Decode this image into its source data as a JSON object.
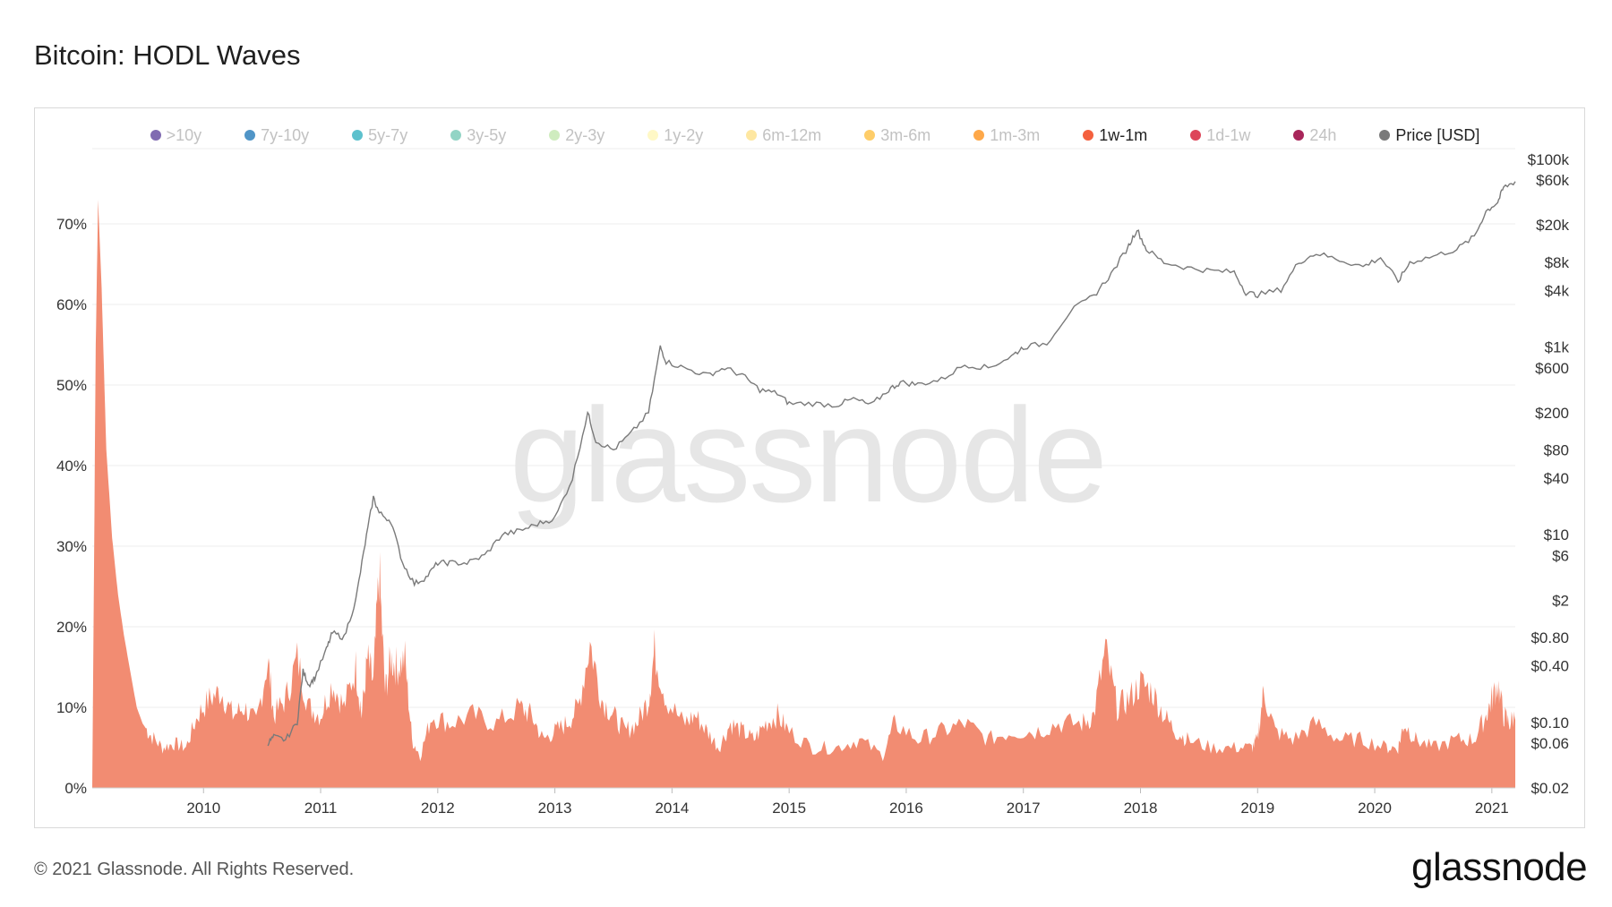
{
  "title": "Bitcoin: HODL Waves",
  "footer": {
    "copyright": "© 2021 Glassnode. All Rights Reserved.",
    "logo": "glassnode"
  },
  "watermark": "glassnode",
  "colors": {
    "area_fill": "#f28c72",
    "price_line": "#7a7a7a",
    "grid": "#eeeeee"
  },
  "chart_data": {
    "type": "area",
    "legend_position": "top",
    "legend": [
      {
        "label": ">10y",
        "color": "#6a51a3",
        "active": false
      },
      {
        "label": "7y-10y",
        "color": "#3182bd",
        "active": false
      },
      {
        "label": "5y-7y",
        "color": "#41b6c4",
        "active": false
      },
      {
        "label": "3y-5y",
        "color": "#7fcdbb",
        "active": false
      },
      {
        "label": "2y-3y",
        "color": "#c7e9b4",
        "active": false
      },
      {
        "label": "1y-2y",
        "color": "#fff7bc",
        "active": false
      },
      {
        "label": "6m-12m",
        "color": "#fee391",
        "active": false
      },
      {
        "label": "3m-6m",
        "color": "#fec44f",
        "active": false
      },
      {
        "label": "1m-3m",
        "color": "#fe9929",
        "active": false
      },
      {
        "label": "1w-1m",
        "color": "#f4603e",
        "active": true
      },
      {
        "label": "1d-1w",
        "color": "#d7263d",
        "active": false
      },
      {
        "label": "24h",
        "color": "#99003d",
        "active": false
      },
      {
        "label": "Price [USD]",
        "color": "#7a7a7a",
        "active": true
      }
    ],
    "x_ticks": [
      "2010",
      "2011",
      "2012",
      "2013",
      "2014",
      "2015",
      "2016",
      "2017",
      "2018",
      "2019",
      "2020",
      "2021"
    ],
    "x_range": [
      2009.05,
      2021.2
    ],
    "y_left": {
      "ticks": [
        "0%",
        "10%",
        "20%",
        "30%",
        "40%",
        "50%",
        "60%",
        "70%"
      ],
      "range": [
        0,
        78
      ]
    },
    "y_right": {
      "scale": "log",
      "ticks": [
        "$0.02",
        "$0.06",
        "$0.10",
        "$0.40",
        "$0.80",
        "$2",
        "$6",
        "$10",
        "$40",
        "$80",
        "$200",
        "$600",
        "$1k",
        "$4k",
        "$8k",
        "$20k",
        "$60k",
        "$100k"
      ],
      "tick_values": [
        0.02,
        0.06,
        0.1,
        0.4,
        0.8,
        2,
        6,
        10,
        40,
        80,
        200,
        600,
        1000,
        4000,
        8000,
        20000,
        60000,
        100000
      ],
      "range": [
        0.02,
        100000
      ]
    },
    "series": [
      {
        "name": "1w-1m",
        "unit": "%",
        "points": [
          [
            2009.05,
            0
          ],
          [
            2009.08,
            55
          ],
          [
            2009.1,
            73
          ],
          [
            2009.13,
            62
          ],
          [
            2009.17,
            42
          ],
          [
            2009.22,
            31
          ],
          [
            2009.27,
            24
          ],
          [
            2009.32,
            19
          ],
          [
            2009.38,
            14
          ],
          [
            2009.43,
            10
          ],
          [
            2009.48,
            8
          ],
          [
            2009.55,
            6.5
          ],
          [
            2009.65,
            5
          ],
          [
            2009.75,
            5.5
          ],
          [
            2009.85,
            5
          ],
          [
            2009.95,
            9
          ],
          [
            2010.05,
            11
          ],
          [
            2010.15,
            12
          ],
          [
            2010.25,
            9
          ],
          [
            2010.35,
            10
          ],
          [
            2010.45,
            8
          ],
          [
            2010.55,
            16
          ],
          [
            2010.6,
            9
          ],
          [
            2010.7,
            11
          ],
          [
            2010.8,
            16
          ],
          [
            2010.9,
            10
          ],
          [
            2011.0,
            9
          ],
          [
            2011.1,
            13
          ],
          [
            2011.2,
            10
          ],
          [
            2011.3,
            15
          ],
          [
            2011.35,
            9
          ],
          [
            2011.4,
            16
          ],
          [
            2011.45,
            13
          ],
          [
            2011.5,
            27
          ],
          [
            2011.55,
            12
          ],
          [
            2011.6,
            16
          ],
          [
            2011.65,
            15
          ],
          [
            2011.72,
            16
          ],
          [
            2011.78,
            6
          ],
          [
            2011.85,
            4
          ],
          [
            2011.95,
            9
          ],
          [
            2012.1,
            8
          ],
          [
            2012.3,
            9
          ],
          [
            2012.5,
            8
          ],
          [
            2012.7,
            10
          ],
          [
            2012.8,
            9
          ],
          [
            2012.9,
            6
          ],
          [
            2013.0,
            7
          ],
          [
            2013.1,
            8
          ],
          [
            2013.2,
            10
          ],
          [
            2013.3,
            18
          ],
          [
            2013.4,
            11
          ],
          [
            2013.5,
            9
          ],
          [
            2013.6,
            7
          ],
          [
            2013.7,
            8
          ],
          [
            2013.8,
            11
          ],
          [
            2013.85,
            17
          ],
          [
            2013.95,
            11
          ],
          [
            2014.1,
            8
          ],
          [
            2014.2,
            9
          ],
          [
            2014.3,
            7
          ],
          [
            2014.4,
            5
          ],
          [
            2014.5,
            8
          ],
          [
            2014.6,
            7
          ],
          [
            2014.7,
            6
          ],
          [
            2014.8,
            8
          ],
          [
            2014.9,
            9
          ],
          [
            2015.0,
            7
          ],
          [
            2015.2,
            5
          ],
          [
            2015.4,
            5
          ],
          [
            2015.6,
            6
          ],
          [
            2015.8,
            4
          ],
          [
            2015.9,
            8
          ],
          [
            2016.1,
            6
          ],
          [
            2016.3,
            7
          ],
          [
            2016.5,
            8
          ],
          [
            2016.7,
            6
          ],
          [
            2016.9,
            7
          ],
          [
            2017.1,
            7
          ],
          [
            2017.3,
            8
          ],
          [
            2017.5,
            8
          ],
          [
            2017.6,
            9
          ],
          [
            2017.7,
            17
          ],
          [
            2017.8,
            10
          ],
          [
            2017.9,
            11
          ],
          [
            2018.0,
            13
          ],
          [
            2018.1,
            12
          ],
          [
            2018.2,
            9
          ],
          [
            2018.3,
            7
          ],
          [
            2018.4,
            6
          ],
          [
            2018.6,
            5
          ],
          [
            2018.8,
            5
          ],
          [
            2018.95,
            5
          ],
          [
            2019.0,
            6
          ],
          [
            2019.05,
            12
          ],
          [
            2019.15,
            7
          ],
          [
            2019.3,
            6
          ],
          [
            2019.5,
            8
          ],
          [
            2019.7,
            6
          ],
          [
            2019.9,
            6
          ],
          [
            2020.1,
            5
          ],
          [
            2020.2,
            5
          ],
          [
            2020.25,
            8
          ],
          [
            2020.35,
            6
          ],
          [
            2020.5,
            5
          ],
          [
            2020.7,
            6
          ],
          [
            2020.85,
            6
          ],
          [
            2020.95,
            9
          ],
          [
            2021.0,
            11
          ],
          [
            2021.05,
            13
          ],
          [
            2021.1,
            9
          ],
          [
            2021.15,
            8
          ],
          [
            2021.2,
            9
          ]
        ]
      },
      {
        "name": "Price [USD]",
        "unit": "USD",
        "points": [
          [
            2010.55,
            0.06
          ],
          [
            2010.6,
            0.07
          ],
          [
            2010.7,
            0.065
          ],
          [
            2010.8,
            0.1
          ],
          [
            2010.85,
            0.35
          ],
          [
            2010.9,
            0.25
          ],
          [
            2010.95,
            0.3
          ],
          [
            2011.05,
            0.6
          ],
          [
            2011.1,
            0.9
          ],
          [
            2011.2,
            0.8
          ],
          [
            2011.3,
            2
          ],
          [
            2011.38,
            8
          ],
          [
            2011.45,
            25
          ],
          [
            2011.5,
            17
          ],
          [
            2011.6,
            14
          ],
          [
            2011.7,
            5
          ],
          [
            2011.8,
            3
          ],
          [
            2011.9,
            3.5
          ],
          [
            2012.0,
            5
          ],
          [
            2012.1,
            5
          ],
          [
            2012.25,
            5
          ],
          [
            2012.4,
            6
          ],
          [
            2012.55,
            10
          ],
          [
            2012.7,
            11
          ],
          [
            2012.85,
            13
          ],
          [
            2013.0,
            15
          ],
          [
            2013.15,
            40
          ],
          [
            2013.28,
            200
          ],
          [
            2013.35,
            100
          ],
          [
            2013.5,
            80
          ],
          [
            2013.65,
            120
          ],
          [
            2013.8,
            200
          ],
          [
            2013.9,
            1000
          ],
          [
            2013.95,
            700
          ],
          [
            2014.1,
            600
          ],
          [
            2014.3,
            500
          ],
          [
            2014.45,
            600
          ],
          [
            2014.6,
            500
          ],
          [
            2014.75,
            350
          ],
          [
            2014.9,
            320
          ],
          [
            2015.0,
            250
          ],
          [
            2015.2,
            250
          ],
          [
            2015.4,
            240
          ],
          [
            2015.55,
            280
          ],
          [
            2015.7,
            240
          ],
          [
            2015.85,
            350
          ],
          [
            2015.95,
            420
          ],
          [
            2016.1,
            400
          ],
          [
            2016.3,
            450
          ],
          [
            2016.5,
            650
          ],
          [
            2016.7,
            600
          ],
          [
            2016.9,
            800
          ],
          [
            2017.0,
            1000
          ],
          [
            2017.2,
            1100
          ],
          [
            2017.4,
            2400
          ],
          [
            2017.6,
            3500
          ],
          [
            2017.75,
            6000
          ],
          [
            2017.9,
            12000
          ],
          [
            2017.97,
            18000
          ],
          [
            2018.05,
            11000
          ],
          [
            2018.2,
            8000
          ],
          [
            2018.4,
            7000
          ],
          [
            2018.6,
            6500
          ],
          [
            2018.8,
            6300
          ],
          [
            2018.9,
            3800
          ],
          [
            2019.0,
            3600
          ],
          [
            2019.2,
            4100
          ],
          [
            2019.35,
            8000
          ],
          [
            2019.5,
            10000
          ],
          [
            2019.7,
            8500
          ],
          [
            2019.9,
            7200
          ],
          [
            2020.05,
            9000
          ],
          [
            2020.2,
            5000
          ],
          [
            2020.3,
            8000
          ],
          [
            2020.5,
            9300
          ],
          [
            2020.7,
            11000
          ],
          [
            2020.85,
            15000
          ],
          [
            2020.95,
            28000
          ],
          [
            2021.05,
            35000
          ],
          [
            2021.1,
            50000
          ],
          [
            2021.2,
            58000
          ]
        ]
      }
    ]
  }
}
